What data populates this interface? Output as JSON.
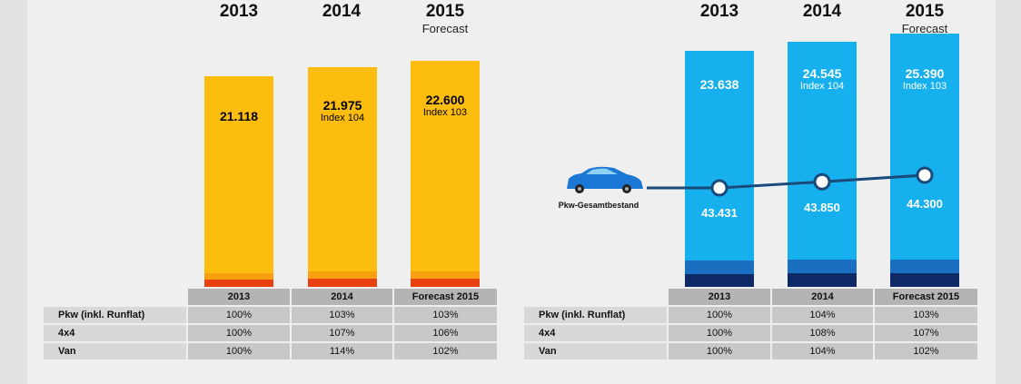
{
  "chart_data": [
    {
      "type": "bar",
      "stacked": true,
      "categories": [
        "2013",
        "2014",
        "2015"
      ],
      "category_sublabels": [
        "",
        "",
        "Forecast"
      ],
      "series": [
        {
          "name": "Van",
          "color": "#e8400f"
        },
        {
          "name": "4x4",
          "color": "#f8a00f"
        },
        {
          "name": "Pkw (inkl. Runflat)",
          "color": "#fdbd0e"
        }
      ],
      "totals": [
        21118,
        21975,
        22600
      ],
      "total_labels": [
        "21.118",
        "21.975",
        "22.600"
      ],
      "index_labels": [
        "",
        "Index 104",
        "Index 103"
      ],
      "segment_values": {
        "Van": [
          700,
          800,
          800
        ],
        "4x4": [
          700,
          750,
          750
        ]
      },
      "ylim": [
        0,
        28000
      ],
      "table": {
        "headers": [
          "2013",
          "2014",
          "Forecast 2015"
        ],
        "rows": [
          {
            "label": "Pkw (inkl. Runflat)",
            "color": "#fdbd0e",
            "values": [
              "100%",
              "103%",
              "103%"
            ]
          },
          {
            "label": "4x4",
            "color": "#f8a00f",
            "values": [
              "100%",
              "107%",
              "106%"
            ]
          },
          {
            "label": "Van",
            "color": "#e8400f",
            "values": [
              "100%",
              "114%",
              "102%"
            ]
          }
        ]
      }
    },
    {
      "type": "bar",
      "stacked": true,
      "categories": [
        "2013",
        "2014",
        "2015"
      ],
      "category_sublabels": [
        "",
        "",
        "Forecast"
      ],
      "series": [
        {
          "name": "Van",
          "color": "#0d2a66"
        },
        {
          "name": "4x4",
          "color": "#1a6fc0"
        },
        {
          "name": "Pkw (inkl. Runflat)",
          "color": "#17b0ee"
        }
      ],
      "totals": [
        23638,
        24545,
        25390
      ],
      "total_labels": [
        "23.638",
        "24.545",
        "25.390"
      ],
      "index_labels": [
        "",
        "Index 104",
        "Index 103"
      ],
      "segment_values": {
        "Van": [
          1300,
          1350,
          1350
        ],
        "4x4": [
          1300,
          1350,
          1350
        ]
      },
      "ylim": [
        0,
        28000
      ],
      "line": {
        "name": "Pkw-Gesamtbestand",
        "values": [
          43431,
          43850,
          44300
        ],
        "labels": [
          "43.431",
          "43.850",
          "44.300"
        ],
        "color": "#1a4a7a"
      },
      "table": {
        "headers": [
          "2013",
          "2014",
          "Forecast 2015"
        ],
        "rows": [
          {
            "label": "Pkw (inkl. Runflat)",
            "color": "#17b0ee",
            "values": [
              "100%",
              "104%",
              "103%"
            ]
          },
          {
            "label": "4x4",
            "color": "#1a6fc0",
            "values": [
              "100%",
              "108%",
              "107%"
            ]
          },
          {
            "label": "Van",
            "color": "#0d2a66",
            "values": [
              "100%",
              "104%",
              "102%"
            ]
          }
        ]
      }
    }
  ]
}
